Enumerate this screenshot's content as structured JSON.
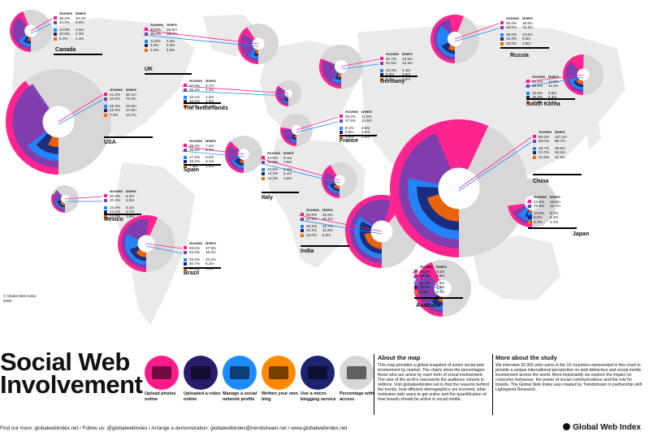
{
  "colors": {
    "access": "#ff1a8c",
    "users": "#7a3fb0",
    "blue": "#1a8cff",
    "navy": "#1c2470",
    "orange": "#ff6a00",
    "gray": "#d8d6d6",
    "map": "#e9e8e8"
  },
  "headers": {
    "access": "Access",
    "users": "Users"
  },
  "chart_data": {
    "type": "pie",
    "metrics": [
      "Upload photos online",
      "Uploaded a video online",
      "Manage a social network profile",
      "Written your own blog",
      "Use a micro-blogging service"
    ],
    "countries": [
      {
        "id": "canada",
        "name": "Canada",
        "rows": [
          [
            "46.2%",
            "10.2m"
          ],
          [
            "40.9%",
            "9.0m"
          ],
          [
            "14.9%",
            "3.3m"
          ],
          [
            "10.6%",
            "2.3m"
          ],
          [
            "5.1%",
            "1.1m"
          ]
        ]
      },
      {
        "id": "uk",
        "name": "UK",
        "rows": [
          [
            "42.6%",
            "15.9m"
          ],
          [
            "36.2%",
            "15.7m"
          ],
          [
            "11.6%",
            "2.4m"
          ],
          [
            "6.4%",
            "5.0m"
          ],
          [
            "5.3%",
            "4.6m"
          ]
        ]
      },
      {
        "id": "usa",
        "name": "USA",
        "rows": [
          [
            "41.2%",
            "82.1m"
          ],
          [
            "42.6%",
            "79.2m"
          ],
          [
            "15.3%",
            "23.5m"
          ],
          [
            "12.8%",
            "17.6m"
          ],
          [
            "7.0%",
            "13.7m"
          ]
        ]
      },
      {
        "id": "netherlands",
        "name": "The Netherlands",
        "rows": [
          [
            "37.0%",
            "4.7m"
          ],
          [
            "36.2%",
            "4.1m"
          ],
          [
            "10.1%",
            "1.3m"
          ],
          [
            "10.0%",
            "1.3m"
          ],
          [
            "3.5%",
            "0.44m"
          ]
        ]
      },
      {
        "id": "spain",
        "name": "Spain",
        "rows": [
          [
            "39.4%",
            "7.4m"
          ],
          [
            "35.8%",
            "6.7m"
          ],
          [
            "17.2%",
            "3.2m"
          ],
          [
            "16.2%",
            "3.1m"
          ],
          [
            "7.5%",
            "1.4m"
          ]
        ]
      },
      {
        "id": "mexico",
        "name": "Mexico",
        "rows": [
          [
            "32.8%",
            "6.4m"
          ],
          [
            "40.2%",
            "4.8m"
          ],
          [
            "23.4%",
            "5.1m"
          ],
          [
            "22.1%",
            "2.7m"
          ],
          [
            "13.7%",
            "1.6m"
          ]
        ]
      },
      {
        "id": "brazil",
        "name": "Brazil",
        "rows": [
          [
            "59.6%",
            "17.9m"
          ],
          [
            "54.0%",
            "16.2m"
          ],
          [
            "34.0%",
            "10.2m"
          ],
          [
            "20.7%",
            "6.2m"
          ],
          [
            "14.2%",
            "4.3m"
          ]
        ]
      },
      {
        "id": "italy",
        "name": "Italy",
        "rows": [
          [
            "43.5%",
            "9.1m"
          ],
          [
            "35.6%",
            "7.6m"
          ],
          [
            "20.6%",
            "4.4m"
          ],
          [
            "19.4%",
            "4.1m"
          ],
          [
            "12.3%",
            "2.6m"
          ]
        ]
      },
      {
        "id": "france",
        "name": "France",
        "rows": [
          [
            "29.2%",
            "11.0m"
          ],
          [
            "27.5%",
            "10.5m"
          ],
          [
            "9.1%",
            "3.6m"
          ],
          [
            "9.5%",
            "3.6m"
          ],
          [
            "3.8%",
            "1.4m"
          ]
        ]
      },
      {
        "id": "germany",
        "name": "Germany",
        "rows": [
          [
            "32.7%",
            "13.9m"
          ],
          [
            "31.6%",
            "13.4m"
          ],
          [
            "10.0%",
            "4.3m"
          ],
          [
            "8.5%",
            "3.6m"
          ],
          [
            "5.7%",
            "2.4m"
          ]
        ]
      },
      {
        "id": "india",
        "name": "India",
        "rows": [
          [
            "63.9%",
            "22.4m"
          ],
          [
            "57.5%",
            "20.1m"
          ],
          [
            "36.2%",
            "12.7m"
          ],
          [
            "34.2%",
            "11.9m"
          ],
          [
            "24.0%",
            "8.4m"
          ]
        ]
      },
      {
        "id": "russia",
        "name": "Russia",
        "rows": [
          [
            "58.9%",
            "18.8m"
          ],
          [
            "48.0%",
            "15.3m"
          ],
          [
            "39.6%",
            "12.6m"
          ],
          [
            "18.3%",
            "5.8m"
          ],
          [
            "10.0%",
            "2.8m"
          ]
        ]
      },
      {
        "id": "southkorea",
        "name": "South Korea",
        "rows": [
          [
            "53.1%",
            "14.9m"
          ],
          [
            "39.9%",
            "11.2m"
          ],
          [
            "19.5%",
            "5.5m"
          ],
          [
            "15.6%",
            "4.4m"
          ],
          [
            "14.0%",
            "4.0m"
          ]
        ]
      },
      {
        "id": "china",
        "name": "China",
        "rows": [
          [
            "60.0%",
            "117.1m"
          ],
          [
            "46.0%",
            "89.7m"
          ],
          [
            "29.7%",
            "35.9m"
          ],
          [
            "27.0%",
            "53.2m"
          ],
          [
            "21.5%",
            "41.9m"
          ]
        ]
      },
      {
        "id": "japan",
        "name": "Japan",
        "rows": [
          [
            "24.5%",
            "15.8m"
          ],
          [
            "19.5%",
            "12.7m"
          ],
          [
            "14.9%",
            "9.7m"
          ],
          [
            "8.0%",
            "5.2m"
          ],
          [
            "5.7%",
            "3.7m"
          ]
        ]
      },
      {
        "id": "australia",
        "name": "Australia",
        "rows": [
          [
            "46.0%",
            "5.0m"
          ],
          [
            "39.1%",
            "4.9m"
          ],
          [
            "11.9%",
            "1.5m"
          ],
          [
            "11.6%",
            "1.4m"
          ],
          [
            "5.8%",
            "0.7m"
          ]
        ]
      }
    ]
  },
  "title_line1": "Social Web",
  "title_line2": "Involvement",
  "legend": [
    {
      "label": "Upload photos online"
    },
    {
      "label": "Uploaded a video online"
    },
    {
      "label": "Manage a social network profile"
    },
    {
      "label": "Written your own blog"
    },
    {
      "label": "Use a micro-blogging service"
    },
    {
      "label": "Percentage with access"
    }
  ],
  "about_map": {
    "heading": "About the map",
    "text": "This map provides a global snapshot of active social web involvement by market. The charts show the percentages those who are active by each form of social involvement. The size of the arc/it's represents the audience volume in millions. Visit globalwebindex.net to find the reasons behind the trends, how different demographics are involved, what motivates web users to get online and the quantification of how brands should be active in social media."
  },
  "about_study": {
    "heading": "More about the study",
    "text": "We interview 32,000 web users in the 16 countries represented in this chart to provide a unique international perspective on web behaviour and social media involvement across the world. More importantly we explore the impact on consumer behaviour, the power of social communications and the role for brands. The Global Web Index was created by Trendstream in partnership with Lightspeed Research."
  },
  "credit": "© Global Web Index\n2009",
  "footer": "Find out more: globalwebindex.net  /  Follow us: @globalwebindex  /  Arrange a demonstration: globalwebindex@trendstream.net  /  www.globalwebindex.net",
  "brand": "Global Web Index"
}
